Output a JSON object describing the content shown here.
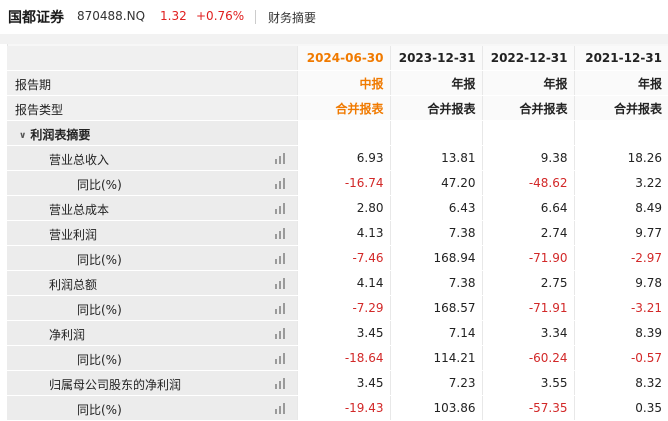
{
  "header": {
    "name": "国都证券",
    "code": "870488.NQ",
    "price": "1.32",
    "change_pct": "+0.76%",
    "tab": "财务摘要"
  },
  "periods": [
    {
      "date": "2024-06-30",
      "report": "中报",
      "type": "合并报表",
      "current": true
    },
    {
      "date": "2023-12-31",
      "report": "年报",
      "type": "合并报表",
      "current": false
    },
    {
      "date": "2022-12-31",
      "report": "年报",
      "type": "合并报表",
      "current": false
    },
    {
      "date": "2021-12-31",
      "report": "年报",
      "type": "合并报表",
      "current": false
    }
  ],
  "labels": {
    "period": "报告期",
    "type": "报告类型",
    "section": "利润表摘要"
  },
  "rows": [
    {
      "label": "营业总收入",
      "indent": 1,
      "values": [
        "6.93",
        "13.81",
        "9.38",
        "18.26"
      ]
    },
    {
      "label": "同比(%)",
      "indent": 2,
      "values": [
        "-16.74",
        "47.20",
        "-48.62",
        "3.22"
      ]
    },
    {
      "label": "营业总成本",
      "indent": 1,
      "values": [
        "2.80",
        "6.43",
        "6.64",
        "8.49"
      ]
    },
    {
      "label": "营业利润",
      "indent": 1,
      "values": [
        "4.13",
        "7.38",
        "2.74",
        "9.77"
      ]
    },
    {
      "label": "同比(%)",
      "indent": 2,
      "values": [
        "-7.46",
        "168.94",
        "-71.90",
        "-2.97"
      ]
    },
    {
      "label": "利润总额",
      "indent": 1,
      "values": [
        "4.14",
        "7.38",
        "2.75",
        "9.78"
      ]
    },
    {
      "label": "同比(%)",
      "indent": 2,
      "values": [
        "-7.29",
        "168.57",
        "-71.91",
        "-3.21"
      ]
    },
    {
      "label": "净利润",
      "indent": 1,
      "values": [
        "3.45",
        "7.14",
        "3.34",
        "8.39"
      ]
    },
    {
      "label": "同比(%)",
      "indent": 2,
      "values": [
        "-18.64",
        "114.21",
        "-60.24",
        "-0.57"
      ]
    },
    {
      "label": "归属母公司股东的净利润",
      "indent": 1,
      "values": [
        "3.45",
        "7.23",
        "3.55",
        "8.32"
      ]
    },
    {
      "label": "同比(%)",
      "indent": 2,
      "values": [
        "-19.43",
        "103.86",
        "-57.35",
        "0.35"
      ]
    }
  ],
  "colors": {
    "negative": "#d22828",
    "accent": "#f07a00"
  }
}
